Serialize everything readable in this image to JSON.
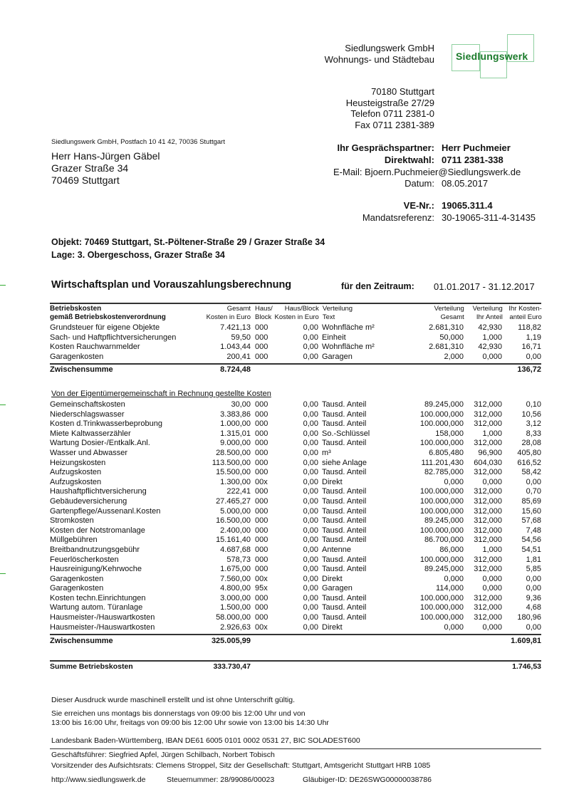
{
  "company": {
    "name": "Siedlungswerk GmbH",
    "subtitle": "Wohnungs- und Städtebau",
    "logo_text": "Siedlungswerk",
    "logo_color": "#1a7a2a",
    "address": [
      "70180 Stuttgart",
      "Heusteigstraße 27/29",
      "Telefon 0711 2381-0",
      "Fax 0711 2381-389"
    ]
  },
  "sender_line": "Siedlungswerk GmbH, Postfach 10 41 42, 70036 Stuttgart",
  "recipient": [
    "Herr Hans-Jürgen Gäbel",
    "Grazer Straße 34",
    "70469 Stuttgart"
  ],
  "contact": {
    "partner_label": "Ihr Gesprächspartner:",
    "partner": "Herr Puchmeier",
    "direct_label": "Direktwahl:",
    "direct": "0711 2381-338",
    "email": "E-Mail: Bjoern.Puchmeier@Siedlungswerk.de",
    "date_label": "Datum:",
    "date": "08.05.2017",
    "ve_label": "VE-Nr.:",
    "ve": "19065.311.4",
    "mandat_label": "Mandatsreferenz:",
    "mandat": "30-19065-311-4-31435"
  },
  "objekt": "Objekt: 70469 Stuttgart, St.-Pöltener-Straße 29 / Grazer Straße 34",
  "lage": "Lage: 3. Obergeschoss, Grazer Straße 34",
  "title": "Wirtschaftsplan und Vorauszahlungsberechnung",
  "period_label": "für den Zeitraum:",
  "period": "01.01.2017 - 31.12.2017",
  "table": {
    "headers": {
      "c1a": "Betriebskosten",
      "c1b": "gemäß Betriebskostenverordnung",
      "c2a": "Gesamt",
      "c2b": "Kosten in Euro",
      "c3a": "Haus/",
      "c3b": "Block",
      "c4a": "Haus/Block",
      "c4b": "Kosten in Euro",
      "c5a": "Verteilung",
      "c5b": "Text",
      "c6a": "Verteilung",
      "c6b": "Gesamt",
      "c7a": "Verteilung",
      "c7b": "Ihr Anteil",
      "c8a": "Ihr Kosten-",
      "c8b": "anteil Euro"
    },
    "section1": [
      [
        "Grundsteuer für eigene Objekte",
        "7.421,13",
        "000",
        "0,00",
        "Wohnfläche m²",
        "2.681,310",
        "42,930",
        "118,82"
      ],
      [
        "Sach- und Haftpflichtversicherungen",
        "59,50",
        "000",
        "0,00",
        "Einheit",
        "50,000",
        "1,000",
        "1,19"
      ],
      [
        "Kosten Rauchwarnmelder",
        "1.043,44",
        "000",
        "0,00",
        "Wohnfläche m²",
        "2.681,310",
        "42,930",
        "16,71"
      ],
      [
        "Garagenkosten",
        "200,41",
        "000",
        "0,00",
        "Garagen",
        "2,000",
        "0,000",
        "0,00"
      ]
    ],
    "subtotal1": {
      "label": "Zwischensumme",
      "total": "8.724,48",
      "share": "136,72"
    },
    "section2_title": "Von der Eigentümergemeinschaft in Rechnung gestellte Kosten",
    "section2": [
      [
        "Gemeinschaftskosten",
        "30,00",
        "000",
        "0,00",
        "Tausd. Anteil",
        "89.245,000",
        "312,000",
        "0,10"
      ],
      [
        "Niederschlagswasser",
        "3.383,86",
        "000",
        "0,00",
        "Tausd. Anteil",
        "100.000,000",
        "312,000",
        "10,56"
      ],
      [
        "Kosten d.Trinkwasserbeprobung",
        "1.000,00",
        "000",
        "0,00",
        "Tausd. Anteil",
        "100.000,000",
        "312,000",
        "3,12"
      ],
      [
        "Miete Kaltwasserzähler",
        "1.315,01",
        "000",
        "0,00",
        "So.-Schlüssel",
        "158,000",
        "1,000",
        "8,33"
      ],
      [
        "Wartung Dosier-/Entkalk.Anl.",
        "9.000,00",
        "000",
        "0,00",
        "Tausd. Anteil",
        "100.000,000",
        "312,000",
        "28,08"
      ],
      [
        "Wasser und Abwasser",
        "28.500,00",
        "000",
        "0,00",
        "m³",
        "6.805,480",
        "96,900",
        "405,80"
      ],
      [
        "Heizungskosten",
        "113.500,00",
        "000",
        "0,00",
        "siehe Anlage",
        "111.201,430",
        "604,030",
        "616,52"
      ],
      [
        "Aufzugskosten",
        "15.500,00",
        "000",
        "0,00",
        "Tausd. Anteil",
        "82.785,000",
        "312,000",
        "58,42"
      ],
      [
        "Aufzugskosten",
        "1.300,00",
        "00x",
        "0,00",
        "Direkt",
        "0,000",
        "0,000",
        "0,00"
      ],
      [
        "Haushaftpflichtversicherung",
        "222,41",
        "000",
        "0,00",
        "Tausd. Anteil",
        "100.000,000",
        "312,000",
        "0,70"
      ],
      [
        "Gebäudeversicherung",
        "27.465,27",
        "000",
        "0,00",
        "Tausd. Anteil",
        "100.000,000",
        "312,000",
        "85,69"
      ],
      [
        "Gartenpflege/Aussenanl.Kosten",
        "5.000,00",
        "000",
        "0,00",
        "Tausd. Anteil",
        "100.000,000",
        "312,000",
        "15,60"
      ],
      [
        "Stromkosten",
        "16.500,00",
        "000",
        "0,00",
        "Tausd. Anteil",
        "89.245,000",
        "312,000",
        "57,68"
      ],
      [
        "Kosten der Notstromanlage",
        "2.400,00",
        "000",
        "0,00",
        "Tausd. Anteil",
        "100.000,000",
        "312,000",
        "7,48"
      ],
      [
        "Müllgebühren",
        "15.161,40",
        "000",
        "0,00",
        "Tausd. Anteil",
        "86.700,000",
        "312,000",
        "54,56"
      ],
      [
        "Breitbandnutzungsgebühr",
        "4.687,68",
        "000",
        "0,00",
        "Antenne",
        "86,000",
        "1,000",
        "54,51"
      ],
      [
        "Feuerlöscherkosten",
        "578,73",
        "000",
        "0,00",
        "Tausd. Anteil",
        "100.000,000",
        "312,000",
        "1,81"
      ],
      [
        "Hausreinigung/Kehrwoche",
        "1.675,00",
        "000",
        "0,00",
        "Tausd. Anteil",
        "89.245,000",
        "312,000",
        "5,85"
      ],
      [
        "Garagenkosten",
        "7.560,00",
        "00x",
        "0,00",
        "Direkt",
        "0,000",
        "0,000",
        "0,00"
      ],
      [
        "Garagenkosten",
        "4.800,00",
        "95x",
        "0,00",
        "Garagen",
        "114,000",
        "0,000",
        "0,00"
      ],
      [
        "Kosten techn.Einrichtungen",
        "3.000,00",
        "000",
        "0,00",
        "Tausd. Anteil",
        "100.000,000",
        "312,000",
        "9,36"
      ],
      [
        "Wartung autom. Türanlage",
        "1.500,00",
        "000",
        "0,00",
        "Tausd. Anteil",
        "100.000,000",
        "312,000",
        "4,68"
      ],
      [
        "Hausmeister-/Hauswartkosten",
        "58.000,00",
        "000",
        "0,00",
        "Tausd. Anteil",
        "100.000,000",
        "312,000",
        "180,96"
      ],
      [
        "Hausmeister-/Hauswartkosten",
        "2.926,63",
        "00x",
        "0,00",
        "Direkt",
        "0,000",
        "0,000",
        "0,00"
      ]
    ],
    "subtotal2": {
      "label": "Zwischensumme",
      "total": "325.005,99",
      "share": "1.609,81"
    },
    "grand_total": {
      "label": "Summe Betriebskosten",
      "total": "333.730,47",
      "share": "1.746,53"
    }
  },
  "footer": {
    "note": "Dieser Ausdruck wurde maschinell erstellt und ist ohne Unterschrift gültig.",
    "hours1": "Sie erreichen uns montags bis donnerstags von 09:00 bis 12:00 Uhr und von",
    "hours2": "13:00 bis 16:00 Uhr, freitags von 09:00 bis 12:00 Uhr sowie von 13:00 bis 14:30 Uhr",
    "bank": "Landesbank Baden-Württemberg, IBAN DE61 6005 0101 0002 0531 27, BIC SOLADEST600",
    "management": "Geschäftsführer: Siegfried Apfel, Jürgen Schilbach, Norbert Tobisch",
    "board": "Vorsitzender des Aufsichtsrats: Clemens Stroppel, Sitz der Gesellschaft: Stuttgart, Amtsgericht Stuttgart HRB 1085",
    "website": "http://www.siedlungswerk.de",
    "tax": "Steuernummer: 28/99086/00023",
    "creditor": "Gläubiger-ID: DE26SWG00000038786"
  }
}
